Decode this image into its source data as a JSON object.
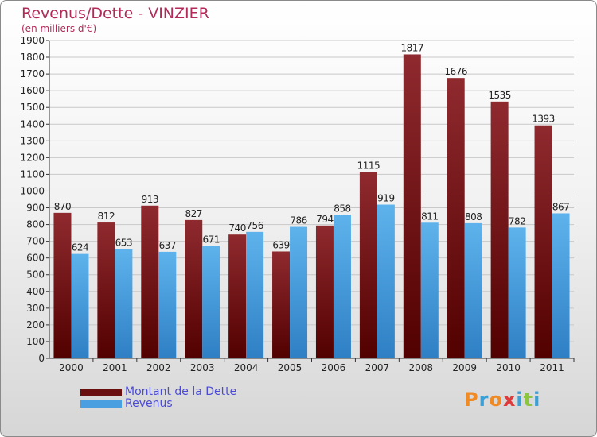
{
  "header": {
    "title": "Revenus/Dette - VINZIER",
    "subtitle": "(en milliers d'€)"
  },
  "legend": {
    "items": [
      {
        "label": "Montant de la Dette",
        "color": "#7a1414"
      },
      {
        "label": "Revenus",
        "color": "#4a9fe0"
      }
    ]
  },
  "logo": {
    "text": "Proxiti",
    "letters": [
      "P",
      "r",
      "o",
      "x",
      "i",
      "t",
      "i"
    ],
    "colors": [
      "#f08a24",
      "#3aa0d8",
      "#f08a24",
      "#e03a3a",
      "#3aa0d8",
      "#8cc63e",
      "#3aa0d8"
    ]
  },
  "chart_data": {
    "type": "bar",
    "title": "Revenus/Dette - VINZIER",
    "subtitle": "(en milliers d'€)",
    "categories": [
      "2000",
      "2001",
      "2002",
      "2003",
      "2004",
      "2005",
      "2006",
      "2007",
      "2008",
      "2009",
      "2010",
      "2011"
    ],
    "series": [
      {
        "name": "Montant de la Dette",
        "values": [
          870,
          812,
          913,
          827,
          740,
          639,
          794,
          1115,
          1817,
          1676,
          1535,
          1393
        ],
        "color": "#7a1414"
      },
      {
        "name": "Revenus",
        "values": [
          624,
          653,
          637,
          671,
          756,
          786,
          858,
          919,
          811,
          808,
          782,
          867
        ],
        "color": "#4a9fe0"
      }
    ],
    "ylim": [
      0,
      1900
    ],
    "yticks": [
      0,
      100,
      200,
      300,
      400,
      500,
      600,
      700,
      800,
      900,
      1000,
      1100,
      1200,
      1300,
      1400,
      1500,
      1600,
      1700,
      1800,
      1900
    ],
    "grid": true,
    "legend_position": "bottom-left"
  }
}
